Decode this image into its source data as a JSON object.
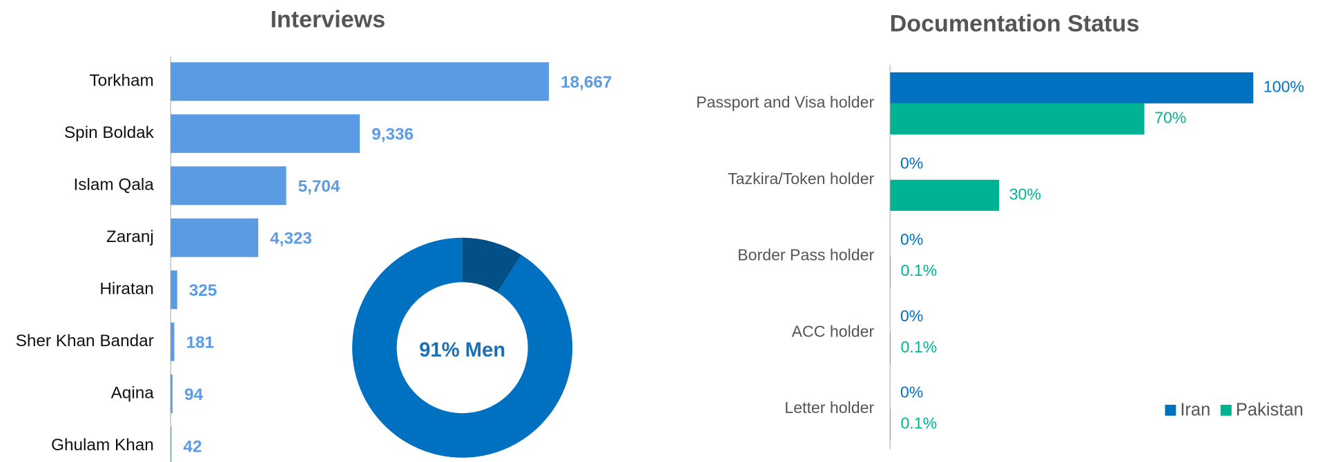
{
  "chart_data": [
    {
      "type": "bar",
      "orientation": "horizontal",
      "title": "Interviews",
      "categories": [
        "Torkham",
        "Spin Boldak",
        "Islam Qala",
        "Zaranj",
        "Hiratan",
        "Sher Khan Bandar",
        "Aqina",
        "Ghulam Khan"
      ],
      "values": [
        18667,
        9336,
        5704,
        4323,
        325,
        181,
        94,
        42
      ],
      "value_labels": [
        "18,667",
        "9,336",
        "5,704",
        "4,323",
        "325",
        "181",
        "94",
        "42"
      ],
      "color": "#5b9be3"
    },
    {
      "type": "pie",
      "donut": true,
      "categories": [
        "Men",
        null
      ],
      "values": [
        91,
        9
      ],
      "colors": [
        "#0070c0",
        "#034f87"
      ],
      "center_label": "91% Men"
    },
    {
      "type": "bar",
      "orientation": "horizontal",
      "title": "Documentation Status",
      "categories": [
        "Passport and Visa holder",
        "Tazkira/Token holder",
        "Border Pass holder",
        "ACC holder",
        "Letter holder"
      ],
      "series": [
        {
          "name": "Iran",
          "color": "#0070c0",
          "values": [
            100,
            0,
            0,
            0,
            0
          ],
          "value_labels": [
            "100%",
            "0%",
            "0%",
            "0%",
            "0%"
          ]
        },
        {
          "name": "Pakistan",
          "color": "#00b294",
          "values": [
            70,
            30,
            0.1,
            0.1,
            0.1
          ],
          "value_labels": [
            "70%",
            "30%",
            "0.1%",
            "0.1%",
            "0.1%"
          ]
        }
      ],
      "legend": "lower right"
    }
  ]
}
